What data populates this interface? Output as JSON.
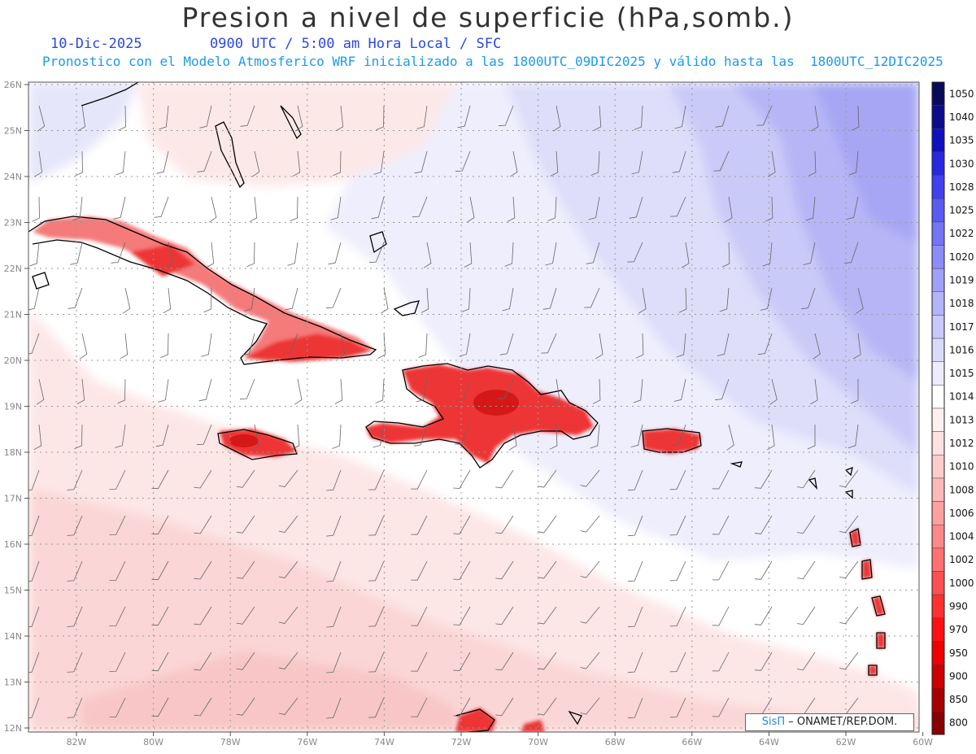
{
  "title": "Presion a nivel de superficie (hPa,somb.)",
  "subtitle": {
    "date": "10-Dic-2025",
    "time": "0900 UTC / 5:00 am Hora Local / SFC",
    "model": "Pronostico con el Modelo Atmosferico WRF inicializado a las 1800UTC_09DIC2025 y válido hasta las  1800UTC_12DIC2025"
  },
  "map": {
    "lat_labels": [
      "26N",
      "25N",
      "24N",
      "23N",
      "22N",
      "21N",
      "20N",
      "19N",
      "18N",
      "17N",
      "16N",
      "15N",
      "14N",
      "13N",
      "12N"
    ],
    "lon_labels": [
      "82W",
      "80W",
      "78W",
      "76W",
      "74W",
      "72W",
      "70W",
      "68W",
      "66W",
      "64W",
      "62W",
      "60W"
    ],
    "grid": true
  },
  "colorbar": {
    "levels": [
      "1050",
      "1040",
      "1035",
      "1030",
      "1028",
      "1025",
      "1022",
      "1020",
      "1019",
      "1018",
      "1017",
      "1016",
      "1015",
      "1014",
      "1013",
      "1012",
      "1010",
      "1008",
      "1006",
      "1004",
      "1002",
      "1000",
      "990",
      "970",
      "950",
      "900",
      "850",
      "800"
    ],
    "colors": [
      "#0a0a5a",
      "#0c0c8c",
      "#1010c0",
      "#2828e0",
      "#4040f0",
      "#5a5af4",
      "#7474f6",
      "#8c8cf8",
      "#a0a0fa",
      "#b4b4fb",
      "#c8c8fc",
      "#dadafd",
      "#ececfe",
      "#ffffff",
      "#fff0f0",
      "#ffe0e0",
      "#ffcccc",
      "#ffb8b8",
      "#ffa0a0",
      "#ff8888",
      "#ff7070",
      "#ff5050",
      "#ff3030",
      "#ff1010",
      "#ee0000",
      "#cc0000",
      "#a80000",
      "#880000"
    ]
  },
  "credit": {
    "brand": "SisΠ",
    "text": " – ONAMET/REP.DOM."
  }
}
